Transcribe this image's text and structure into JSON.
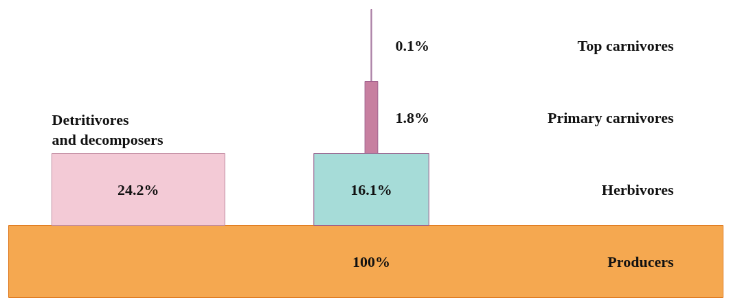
{
  "chart_data": {
    "type": "other",
    "categories": [
      "Top carnivores",
      "Primary carnivores",
      "Herbivores",
      "Producers",
      "Detritivores\nand decomposers"
    ],
    "values": [
      0.1,
      1.8,
      16.1,
      100,
      24.2
    ],
    "value_labels": [
      "0.1%",
      "1.8%",
      "16.1%",
      "100%",
      "24.2%"
    ],
    "colors": [
      "#c8e4ee",
      "#c77fa0",
      "#a6dcd8",
      "#f5a850",
      "#f3cad6"
    ]
  }
}
